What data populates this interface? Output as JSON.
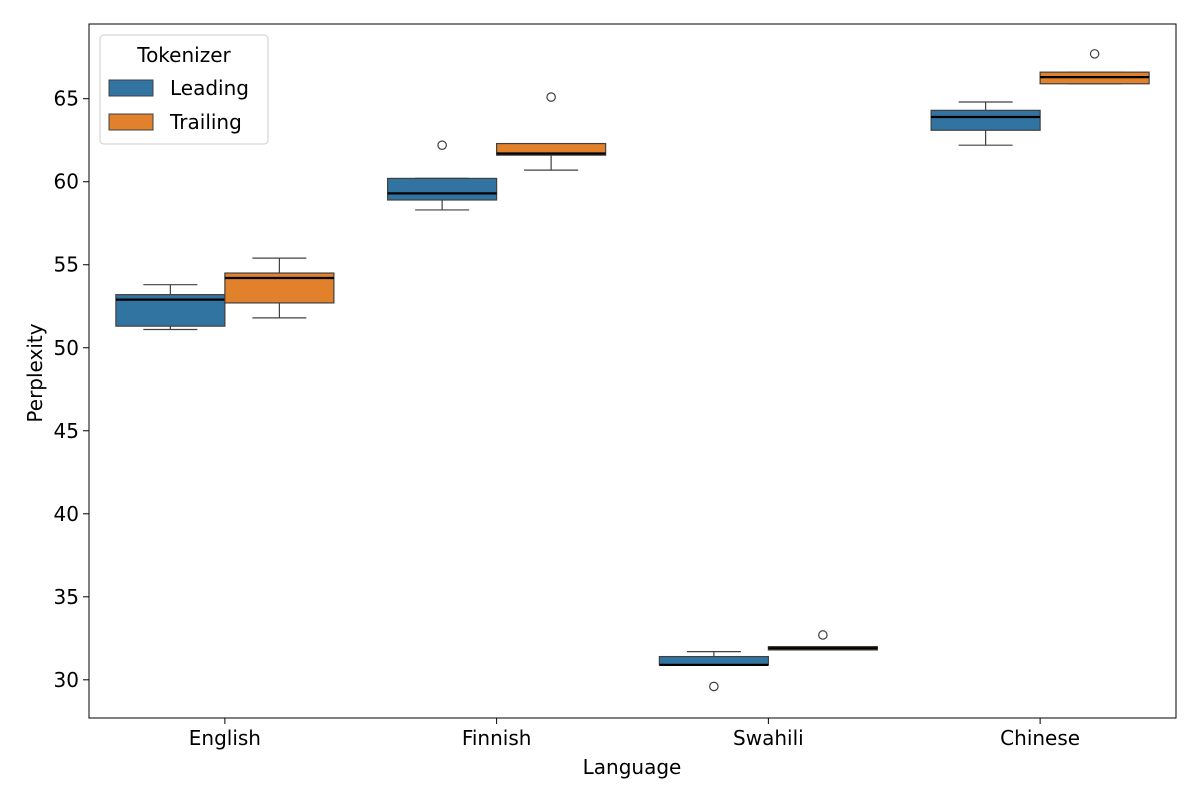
{
  "chart_data": {
    "type": "box",
    "xlabel": "Language",
    "ylabel": "Perplexity",
    "categories": [
      "English",
      "Finnish",
      "Swahili",
      "Chinese"
    ],
    "ylim": [
      27.7,
      69.5
    ],
    "yticks": [
      30,
      35,
      40,
      45,
      50,
      55,
      60,
      65
    ],
    "legend": {
      "title": "Tokenizer",
      "position": "top-left"
    },
    "series": [
      {
        "name": "Leading",
        "color": "#3274a1",
        "boxes": [
          {
            "whisker_low": 51.1,
            "q1": 51.3,
            "median": 52.9,
            "q3": 53.2,
            "whisker_high": 53.8,
            "outliers": []
          },
          {
            "whisker_low": 58.3,
            "q1": 58.9,
            "median": 59.3,
            "q3": 60.2,
            "whisker_high": 60.2,
            "outliers": [
              62.2
            ]
          },
          {
            "whisker_low": 30.9,
            "q1": 30.9,
            "median": 30.9,
            "q3": 31.4,
            "whisker_high": 31.7,
            "outliers": [
              29.6
            ]
          },
          {
            "whisker_low": 62.2,
            "q1": 63.1,
            "median": 63.9,
            "q3": 64.3,
            "whisker_high": 64.8,
            "outliers": []
          }
        ]
      },
      {
        "name": "Trailing",
        "color": "#e1812c",
        "boxes": [
          {
            "whisker_low": 51.8,
            "q1": 52.7,
            "median": 54.2,
            "q3": 54.5,
            "whisker_high": 55.4,
            "outliers": []
          },
          {
            "whisker_low": 60.7,
            "q1": 61.6,
            "median": 61.7,
            "q3": 62.3,
            "whisker_high": 62.3,
            "outliers": [
              65.1
            ]
          },
          {
            "whisker_low": 31.8,
            "q1": 31.8,
            "median": 31.9,
            "q3": 32.0,
            "whisker_high": 32.0,
            "outliers": [
              32.7
            ]
          },
          {
            "whisker_low": 65.9,
            "q1": 65.9,
            "median": 66.3,
            "q3": 66.6,
            "whisker_high": 66.6,
            "outliers": [
              67.7
            ]
          }
        ]
      }
    ]
  }
}
